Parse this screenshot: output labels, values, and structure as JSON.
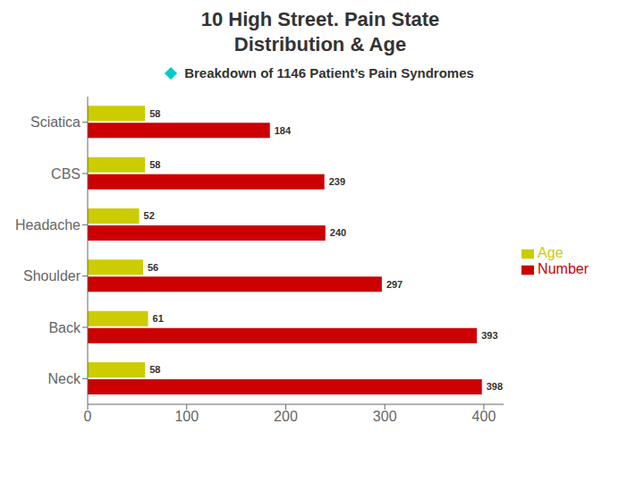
{
  "chart_data": {
    "type": "bar",
    "orientation": "horizontal",
    "title": "10 High Street. Pain State\nDistribution & Age",
    "subtitle": "Breakdown of 1146 Patient’s Pain Syndromes",
    "categories": [
      "Sciatica",
      "CBS",
      "Headache",
      "Shoulder",
      "Back",
      "Neck"
    ],
    "series": [
      {
        "name": "Age",
        "color": "#cccc00",
        "values": [
          58,
          58,
          52,
          56,
          61,
          58
        ]
      },
      {
        "name": "Number",
        "color": "#cc0000",
        "values": [
          184,
          239,
          240,
          297,
          393,
          398
        ]
      }
    ],
    "xlim": [
      0,
      420
    ],
    "xticks": [
      0,
      100,
      200,
      300,
      400
    ],
    "grid": false,
    "data_labels": true,
    "legend": "right"
  }
}
